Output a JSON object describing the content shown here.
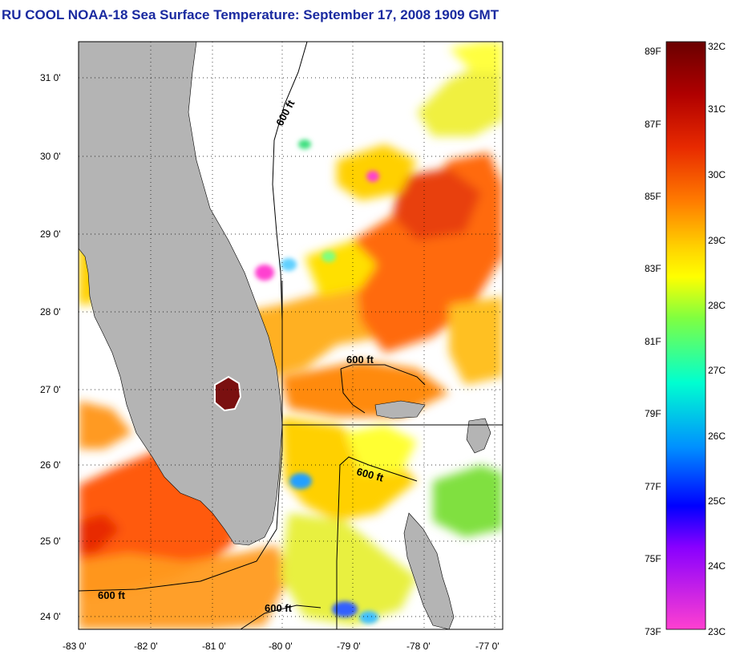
{
  "title": "RU COOL  NOAA-18  Sea Surface Temperature:  September 17, 2008 1909 GMT",
  "map": {
    "lat_labels": [
      "31 0'",
      "30 0'",
      "29 0'",
      "28 0'",
      "27 0'",
      "26 0'",
      "25 0'",
      "24 0'"
    ],
    "lon_labels": [
      "-83 0'",
      "-82 0'",
      "-81 0'",
      "-80 0'",
      "-79 0'",
      "-78 0'",
      "-77 0'"
    ],
    "contour_labels": [
      "600 ft",
      "600 ft",
      "600 ft",
      "600 ft",
      "600 ft"
    ],
    "colors": {
      "land": "#b4b4b4",
      "cloud": "#ffffff",
      "lake": "#7a1010"
    }
  },
  "colorbar": {
    "fahrenheit_labels": [
      "89F",
      "87F",
      "85F",
      "83F",
      "81F",
      "79F",
      "77F",
      "75F",
      "73F"
    ],
    "celsius_labels": [
      "32C",
      "31C",
      "30C",
      "29C",
      "28C",
      "27C",
      "26C",
      "25C",
      "24C",
      "23C"
    ],
    "colors": [
      "#6a0000",
      "#b00000",
      "#e82a00",
      "#ff7a00",
      "#ffd200",
      "#ffff00",
      "#80ff40",
      "#00ffd0",
      "#0090ff",
      "#0000ff",
      "#8800ff",
      "#ff40d0"
    ]
  }
}
